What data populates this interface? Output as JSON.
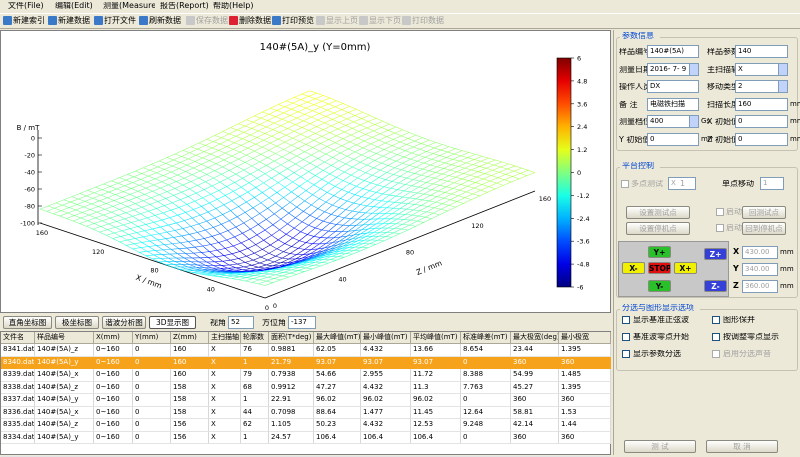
{
  "menu": [
    "文件(File)",
    "编辑(Edit)",
    "测量(Measure)",
    "报告(Report)",
    "帮助(Help)"
  ],
  "toolbar": [
    {
      "label": "新建索引",
      "enabled": true
    },
    {
      "label": "新建数据",
      "enabled": true
    },
    {
      "label": "打开文件",
      "enabled": true
    },
    {
      "label": "刷新数据",
      "enabled": true
    },
    {
      "label": "保存数据",
      "enabled": false
    },
    {
      "label": "删除数据",
      "enabled": true
    },
    {
      "label": "打印预览",
      "enabled": true
    },
    {
      "label": "显示上页",
      "enabled": false
    },
    {
      "label": "显示下页",
      "enabled": false
    },
    {
      "label": "打印数据",
      "enabled": false
    }
  ],
  "plot": {
    "title": "140#(5A)_y (Y=0mm)",
    "b_label": "B / mT",
    "x_label": "X / mm",
    "z_label": "Z / mm",
    "b_ticks": [
      "0",
      "-20",
      "-40",
      "-60",
      "-80",
      "-100"
    ],
    "x_ticks": [
      "160",
      "120",
      "80",
      "40",
      "0"
    ],
    "z_ticks": [
      "0",
      "40",
      "80",
      "120",
      "160"
    ],
    "colorbar_ticks": [
      "6",
      "4.8",
      "3.6",
      "2.4",
      "1.2",
      "0",
      "-1.2",
      "-2.4",
      "-3.6",
      "-4.8",
      "-6"
    ]
  },
  "tabs": [
    "直角坐标图",
    "极坐标图",
    "谐波分析图",
    "3D显示图"
  ],
  "view": {
    "elevation_label": "视角",
    "elevation": "52",
    "azimuth_label": "方位角",
    "azimuth": "-137"
  },
  "table": {
    "headers": [
      "文件名",
      "样品编号",
      "X(mm)",
      "Y(mm)",
      "Z(mm)",
      "主扫描轴",
      "轮廓数",
      "面积(T*deg)",
      "最大峰值(mT)",
      "最小峰值(mT)",
      "平均峰值(mT)",
      "标准峰差(mT)",
      "最大极宽(deg)",
      "最小极宽"
    ],
    "selected": 1,
    "rows": [
      [
        "8341.dat",
        "140#(5A)_z",
        "0~160",
        "0",
        "160",
        "X",
        "76",
        "0.9881",
        "62.05",
        "4.432",
        "13.66",
        "8.654",
        "23.44",
        "1.395"
      ],
      [
        "8340.dat",
        "140#(5A)_y",
        "0~160",
        "0",
        "160",
        "X",
        "1",
        "21.79",
        "93.07",
        "93.07",
        "93.07",
        "0",
        "360",
        "360"
      ],
      [
        "8339.dat",
        "140#(5A)_x",
        "0~160",
        "0",
        "160",
        "X",
        "79",
        "0.7938",
        "54.66",
        "2.955",
        "11.72",
        "8.388",
        "54.99",
        "1.485"
      ],
      [
        "8338.dat",
        "140#(5A)_z",
        "0~160",
        "0",
        "158",
        "X",
        "68",
        "0.9912",
        "47.27",
        "4.432",
        "11.3",
        "7.763",
        "45.27",
        "1.395"
      ],
      [
        "8337.dat",
        "140#(5A)_y",
        "0~160",
        "0",
        "158",
        "X",
        "1",
        "22.91",
        "96.02",
        "96.02",
        "96.02",
        "0",
        "360",
        "360"
      ],
      [
        "8336.dat",
        "140#(5A)_x",
        "0~160",
        "0",
        "158",
        "X",
        "44",
        "0.7098",
        "88.64",
        "1.477",
        "11.45",
        "12.64",
        "58.81",
        "1.53"
      ],
      [
        "8335.dat",
        "140#(5A)_z",
        "0~160",
        "0",
        "156",
        "X",
        "62",
        "1.105",
        "50.23",
        "4.432",
        "12.53",
        "9.248",
        "42.14",
        "1.44"
      ],
      [
        "8334.dat",
        "140#(5A)_y",
        "0~160",
        "0",
        "156",
        "X",
        "1",
        "24.57",
        "106.4",
        "106.4",
        "106.4",
        "0",
        "360",
        "360"
      ]
    ]
  },
  "params": {
    "title": "参数信息",
    "fields": [
      {
        "label": "样品编号",
        "value": "140#(5A)"
      },
      {
        "label": "样品参数",
        "value": "140"
      },
      {
        "label": "测量日期",
        "value": "2016- 7- 9",
        "dropdown": true
      },
      {
        "label": "主扫描轴",
        "value": "X",
        "dropdown": true
      },
      {
        "label": "操作人员",
        "value": "DX"
      },
      {
        "label": "移动类型",
        "value": "2",
        "dropdown": true
      },
      {
        "label": "备  注",
        "value": "电磁铁扫描"
      },
      {
        "label": "扫描长度",
        "value": "160",
        "unit": "mm"
      },
      {
        "label": "测量档位",
        "value": "400",
        "unit": "Gs",
        "dropdown": true
      },
      {
        "label": "X 初始值",
        "value": "0",
        "unit": "mm"
      },
      {
        "label": "Y 初始值",
        "value": "0",
        "unit": "mm"
      },
      {
        "label": "Z 初始值",
        "value": "0",
        "unit": "mm"
      }
    ]
  },
  "platform": {
    "title": "平台控制",
    "multi": "多点测试",
    "multi_axis": "X",
    "multi_count": "1",
    "single": "单点移动",
    "single_value": "1",
    "buttons": [
      "设置测试点",
      "启动",
      "回测试点",
      "设置停机点",
      "启动",
      "回到停机点"
    ],
    "jog": [
      "Y+",
      "Z+",
      "X-",
      "STOP",
      "X+",
      "Y-",
      "Z-"
    ],
    "coords": [
      {
        "label": "X",
        "value": "430.00",
        "unit": "mm"
      },
      {
        "label": "Y",
        "value": "340.00",
        "unit": "mm"
      },
      {
        "label": "Z",
        "value": "360.00",
        "unit": "mm"
      }
    ]
  },
  "options": {
    "title": "分选与图形显示选项",
    "items": [
      {
        "label": "显示基准正弦波",
        "enabled": true
      },
      {
        "label": "图形保并",
        "enabled": true
      },
      {
        "label": "基准波零点开始",
        "enabled": true
      },
      {
        "label": "按调整零点显示",
        "enabled": true
      },
      {
        "label": "显示参数分选",
        "enabled": true
      },
      {
        "label": "启用分选声音",
        "enabled": false
      }
    ],
    "buttons": [
      "测 试",
      "取 消"
    ]
  }
}
